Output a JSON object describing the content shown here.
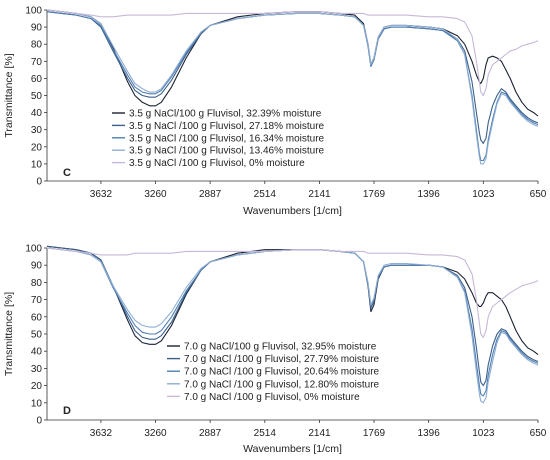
{
  "chart_data": [
    {
      "type": "line",
      "panel_label": "C",
      "xlabel": "Wavenumbers [1/cm]",
      "ylabel": "Transmittance [%]",
      "xlim": [
        4000,
        650
      ],
      "ylim": [
        0,
        100
      ],
      "x_reversed": true,
      "xticks": [
        3632,
        3260,
        2887,
        2514,
        2141,
        1769,
        1396,
        1023,
        650
      ],
      "yticks": [
        0,
        10,
        20,
        30,
        40,
        50,
        60,
        70,
        80,
        90,
        100
      ],
      "grid": false,
      "legend_position": "bottom-center",
      "x": [
        4000,
        3900,
        3800,
        3700,
        3632,
        3550,
        3450,
        3400,
        3350,
        3300,
        3260,
        3220,
        3150,
        3050,
        2950,
        2887,
        2700,
        2514,
        2300,
        2141,
        2000,
        1900,
        1840,
        1810,
        1790,
        1769,
        1740,
        1700,
        1650,
        1550,
        1396,
        1300,
        1200,
        1150,
        1100,
        1070,
        1050,
        1040,
        1023,
        1005,
        990,
        960,
        930,
        900,
        870,
        840,
        800,
        760,
        720,
        680,
        650
      ],
      "series": [
        {
          "name": "3.5 g NaCl/100 g Fluvisol, 32.39% moisture",
          "color": "#1a2233",
          "values": [
            100,
            99,
            98,
            96,
            92,
            78,
            58,
            50,
            46,
            44,
            44,
            46,
            55,
            72,
            86,
            91,
            96,
            98,
            99,
            99,
            98,
            97,
            92,
            80,
            68,
            72,
            84,
            90,
            91,
            91,
            90,
            89,
            85,
            80,
            70,
            62,
            58,
            57,
            60,
            68,
            72,
            73,
            72,
            70,
            65,
            60,
            52,
            46,
            42,
            40,
            38
          ]
        },
        {
          "name": "3.5 g NaCl /100 g Fluvisol, 27.18% moisture",
          "color": "#3a5f8a",
          "values": [
            99,
            98,
            97,
            95,
            90,
            76,
            60,
            53,
            50,
            49,
            49,
            51,
            59,
            74,
            86,
            91,
            95,
            97,
            98,
            98,
            97,
            96,
            91,
            79,
            67,
            71,
            83,
            89,
            90,
            90,
            89,
            88,
            83,
            76,
            58,
            40,
            28,
            24,
            22,
            25,
            34,
            44,
            50,
            54,
            52,
            48,
            44,
            40,
            37,
            35,
            34
          ]
        },
        {
          "name": "3.5 g NaCl /100 g Fluvisol, 16.34% moisture",
          "color": "#4f7fb3",
          "values": [
            99,
            98,
            97,
            95,
            91,
            77,
            62,
            55,
            52,
            51,
            51,
            53,
            61,
            75,
            87,
            91,
            95,
            97,
            98,
            98,
            97,
            96,
            91,
            79,
            67,
            71,
            83,
            89,
            90,
            90,
            89,
            88,
            82,
            74,
            50,
            30,
            16,
            12,
            12,
            15,
            24,
            36,
            46,
            52,
            51,
            47,
            43,
            39,
            36,
            34,
            33
          ]
        },
        {
          "name": "3.5 g NaCl /100 g Fluvisol, 13.46% moisture",
          "color": "#8eaed4",
          "values": [
            100,
            99,
            98,
            96,
            92,
            79,
            64,
            57,
            54,
            52,
            52,
            54,
            62,
            76,
            87,
            91,
            95,
            97,
            98,
            98,
            97,
            96,
            91,
            80,
            68,
            72,
            84,
            90,
            91,
            91,
            90,
            89,
            83,
            74,
            48,
            27,
            14,
            10,
            10,
            13,
            22,
            34,
            45,
            51,
            50,
            46,
            42,
            38,
            35,
            33,
            32
          ]
        },
        {
          "name": "3.5 g NaCl /100 g Fluvisol, 0% moisture",
          "color": "#c6b8d8",
          "values": [
            100,
            99,
            98,
            97,
            96,
            96,
            97,
            97,
            97,
            97,
            97,
            97,
            97,
            98,
            98,
            98,
            98,
            98,
            99,
            99,
            98,
            98,
            98,
            97,
            97,
            97,
            97,
            97,
            97,
            97,
            96,
            96,
            95,
            93,
            85,
            70,
            58,
            52,
            50,
            54,
            62,
            68,
            70,
            72,
            74,
            76,
            77,
            79,
            80,
            81,
            82
          ]
        }
      ]
    },
    {
      "type": "line",
      "panel_label": "D",
      "xlabel": "Wavenumbers [1/cm]",
      "ylabel": "Transmittance [%]",
      "xlim": [
        4000,
        650
      ],
      "ylim": [
        0,
        100
      ],
      "x_reversed": true,
      "xticks": [
        3632,
        3260,
        2887,
        2514,
        2141,
        1769,
        1396,
        1023,
        650
      ],
      "yticks": [
        0,
        10,
        20,
        30,
        40,
        50,
        60,
        70,
        80,
        90,
        100
      ],
      "grid": false,
      "legend_position": "bottom-center",
      "x": [
        4000,
        3900,
        3800,
        3700,
        3632,
        3550,
        3450,
        3400,
        3350,
        3300,
        3260,
        3220,
        3150,
        3050,
        2950,
        2887,
        2700,
        2514,
        2300,
        2141,
        2000,
        1900,
        1840,
        1810,
        1790,
        1769,
        1740,
        1700,
        1650,
        1550,
        1396,
        1300,
        1200,
        1150,
        1100,
        1070,
        1050,
        1040,
        1023,
        1005,
        990,
        960,
        930,
        900,
        870,
        840,
        800,
        760,
        720,
        680,
        650
      ],
      "series": [
        {
          "name": "7.0 g NaCl/100 g Fluvisol, 32.95% moisture",
          "color": "#1a2233",
          "values": [
            101,
            100,
            99,
            97,
            93,
            78,
            58,
            49,
            45,
            44,
            44,
            46,
            55,
            73,
            87,
            92,
            97,
            99,
            99,
            99,
            98,
            97,
            92,
            78,
            63,
            67,
            82,
            89,
            90,
            90,
            90,
            89,
            86,
            82,
            74,
            68,
            66,
            66,
            68,
            72,
            74,
            74,
            72,
            70,
            66,
            60,
            52,
            46,
            42,
            40,
            38
          ]
        },
        {
          "name": "7.0 g NaCl /100 g Fluvisol, 27.79% moisture",
          "color": "#3a5f8a",
          "values": [
            101,
            100,
            99,
            97,
            93,
            78,
            60,
            52,
            48,
            47,
            47,
            49,
            57,
            74,
            87,
            92,
            96,
            98,
            99,
            99,
            98,
            97,
            92,
            79,
            65,
            69,
            83,
            89,
            90,
            90,
            90,
            89,
            84,
            77,
            60,
            42,
            28,
            22,
            20,
            23,
            32,
            43,
            50,
            53,
            52,
            48,
            44,
            40,
            37,
            35,
            34
          ]
        },
        {
          "name": "7.0 g NaCl /100 g Fluvisol, 20.64% moisture",
          "color": "#4f7fb3",
          "values": [
            100,
            99,
            98,
            96,
            92,
            77,
            62,
            55,
            51,
            50,
            50,
            52,
            60,
            75,
            87,
            92,
            96,
            98,
            99,
            99,
            98,
            97,
            92,
            79,
            66,
            70,
            83,
            89,
            90,
            90,
            90,
            89,
            83,
            75,
            53,
            33,
            20,
            15,
            14,
            17,
            26,
            38,
            47,
            52,
            51,
            47,
            43,
            39,
            36,
            34,
            33
          ]
        },
        {
          "name": "7.0 g NaCl /100 g Fluvisol, 12.80% moisture",
          "color": "#8eaed4",
          "values": [
            100,
            99,
            98,
            96,
            92,
            78,
            64,
            58,
            55,
            54,
            54,
            56,
            63,
            77,
            88,
            92,
            96,
            98,
            99,
            99,
            98,
            97,
            92,
            80,
            67,
            71,
            84,
            90,
            91,
            91,
            90,
            89,
            83,
            74,
            49,
            28,
            15,
            11,
            10,
            13,
            22,
            34,
            45,
            51,
            50,
            46,
            42,
            38,
            35,
            33,
            32
          ]
        },
        {
          "name": "7.0 g NaCl /100 g Fluvisol, 0% moisture",
          "color": "#c6b8d8",
          "values": [
            100,
            99,
            98,
            97,
            96,
            96,
            96,
            97,
            97,
            97,
            97,
            97,
            97,
            98,
            98,
            98,
            98,
            98,
            99,
            99,
            98,
            98,
            98,
            97,
            97,
            97,
            97,
            97,
            97,
            97,
            96,
            96,
            95,
            93,
            85,
            70,
            56,
            50,
            48,
            52,
            60,
            66,
            68,
            70,
            72,
            74,
            76,
            78,
            79,
            80,
            81
          ]
        }
      ]
    }
  ]
}
